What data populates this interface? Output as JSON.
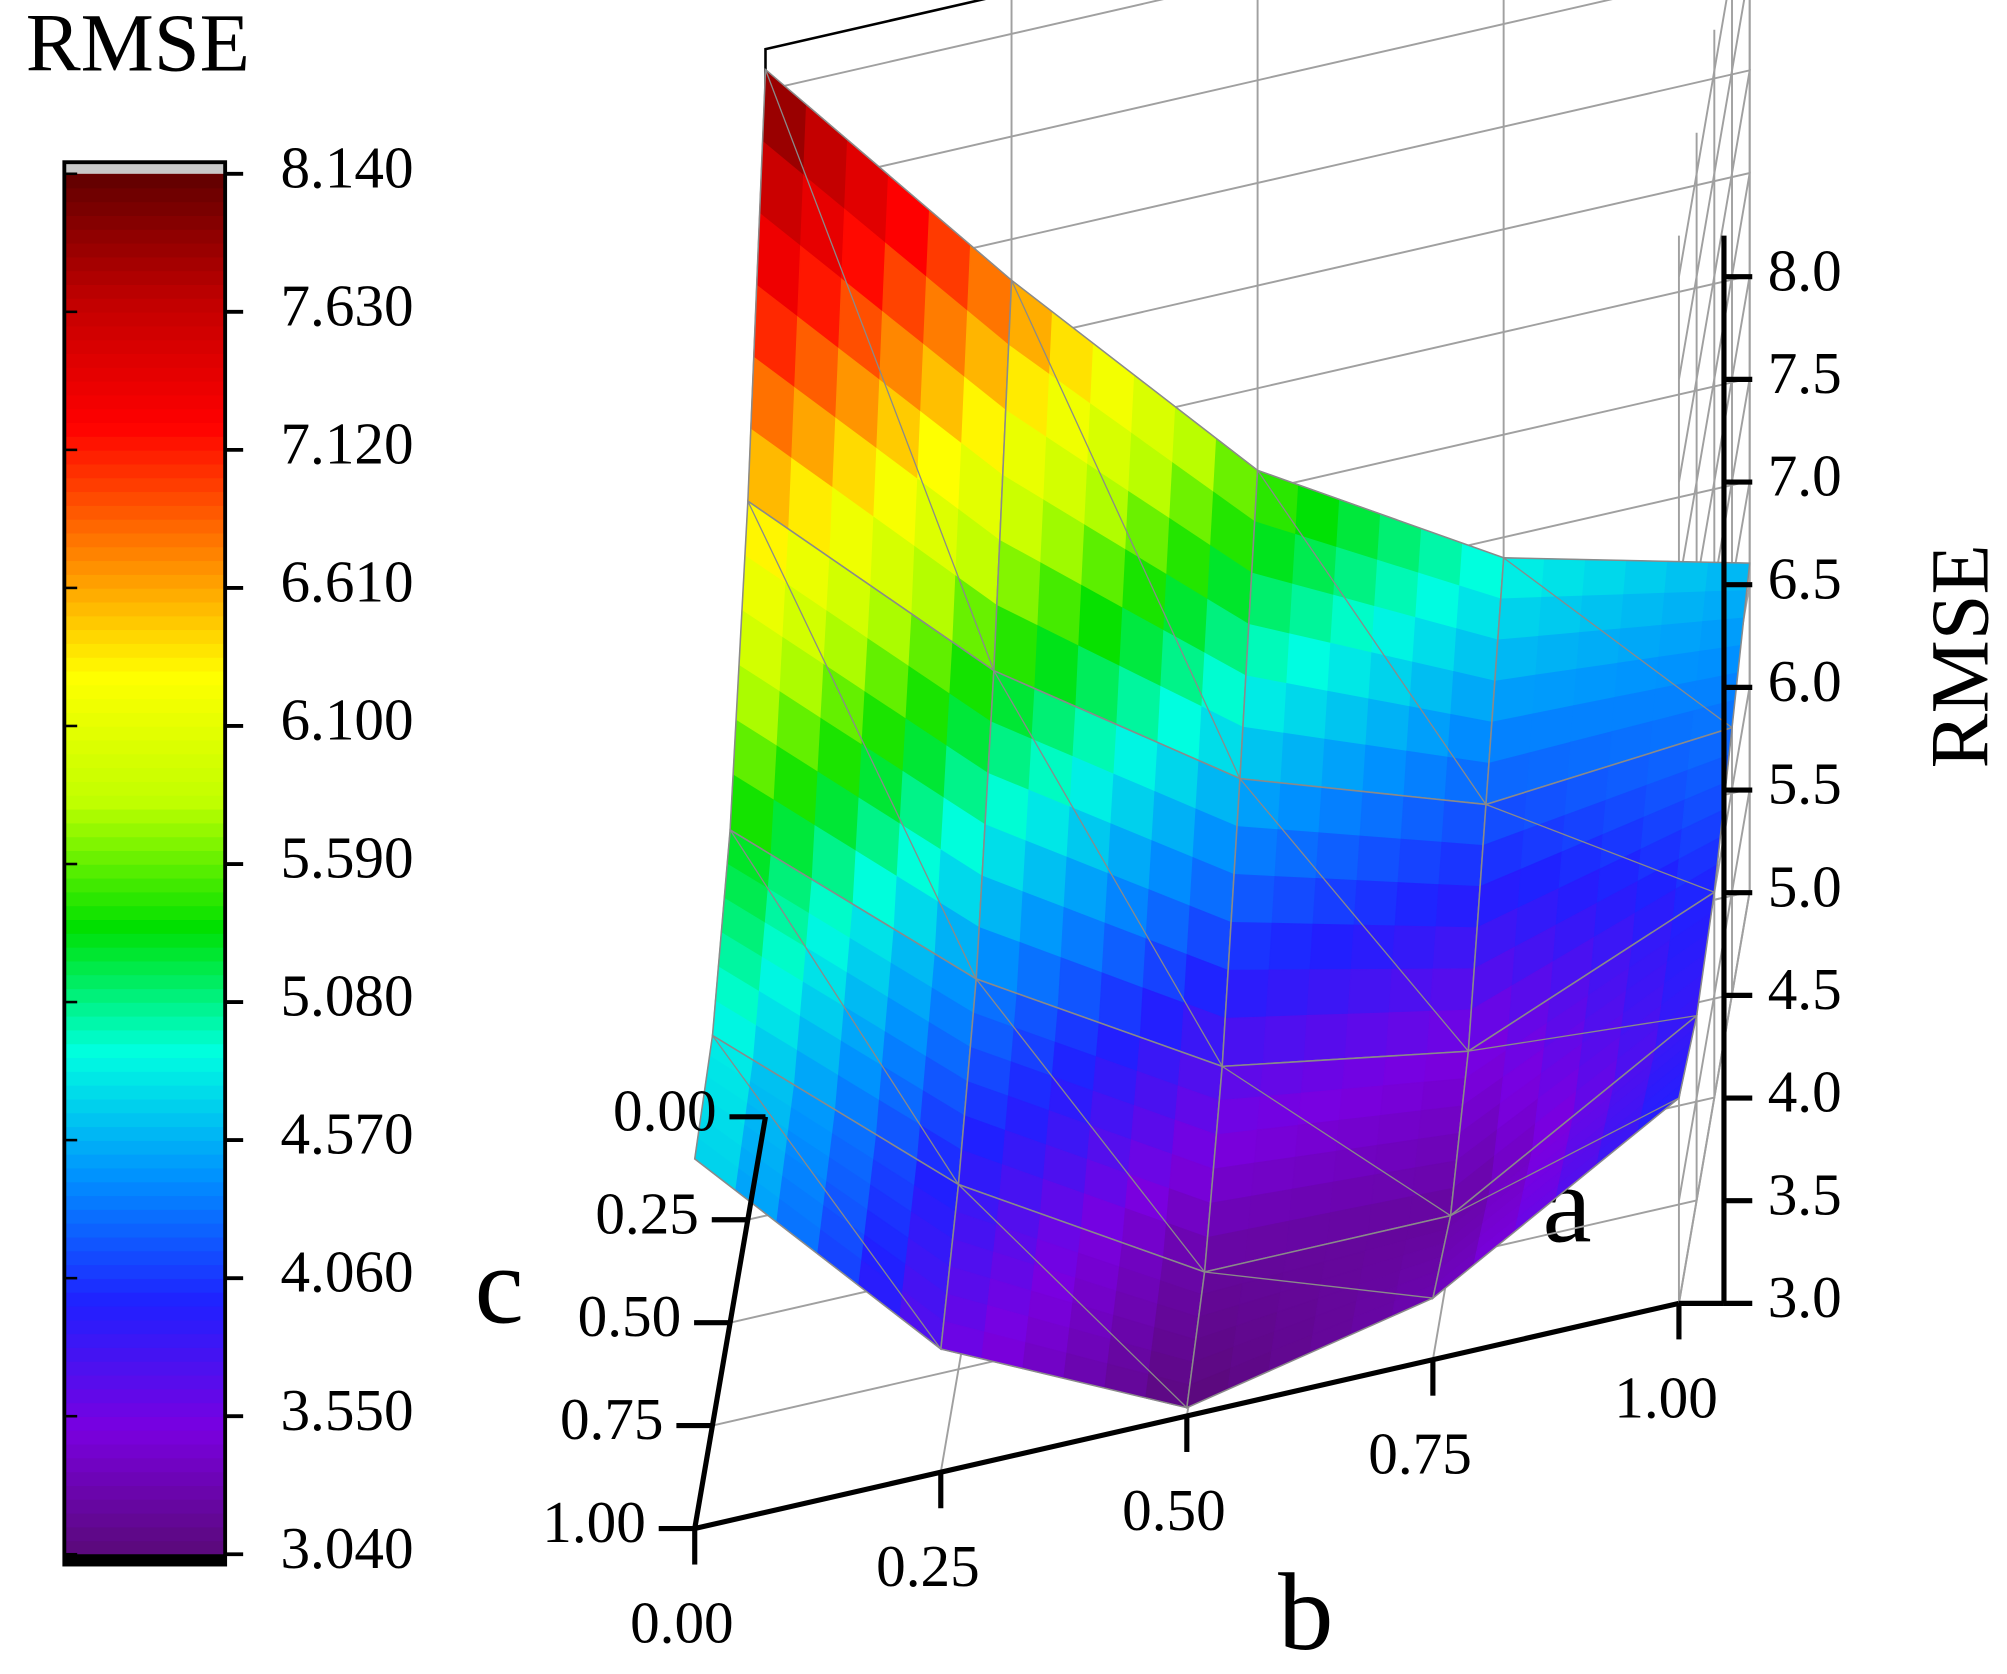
{
  "chart_data": {
    "type": "surface3d",
    "colorbar_title": "RMSE",
    "colorbar_ticks": [
      {
        "value": 3.04,
        "label": "3.040"
      },
      {
        "value": 3.55,
        "label": "3.550"
      },
      {
        "value": 4.06,
        "label": "4.060"
      },
      {
        "value": 4.57,
        "label": "4.570"
      },
      {
        "value": 5.08,
        "label": "5.080"
      },
      {
        "value": 5.59,
        "label": "5.590"
      },
      {
        "value": 6.1,
        "label": "6.100"
      },
      {
        "value": 6.61,
        "label": "6.610"
      },
      {
        "value": 7.12,
        "label": "7.120"
      },
      {
        "value": 7.63,
        "label": "7.630"
      },
      {
        "value": 8.14,
        "label": "8.140"
      }
    ],
    "colormap": [
      "#5a0a78",
      "#7a00e0",
      "#2020ff",
      "#0090ff",
      "#00ffe0",
      "#00e000",
      "#c0ff00",
      "#ffff00",
      "#ff8000",
      "#ff0000",
      "#c00000",
      "#600000"
    ],
    "x_label": "b",
    "y_label": "c",
    "z_label": "RMSE",
    "annotation": "a",
    "x": [
      0,
      0.25,
      0.5,
      0.75,
      1
    ],
    "y": [
      0,
      0.25,
      0.5,
      0.75,
      1
    ],
    "z": [
      [
        8.1,
        6.8,
        5.6,
        4.9,
        4.6
      ],
      [
        6.5,
        5.4,
        4.6,
        4.2,
        4.3
      ],
      [
        5.4,
        4.4,
        3.7,
        3.5,
        4.0
      ],
      [
        4.9,
        3.9,
        3.2,
        3.2,
        3.9
      ],
      [
        4.8,
        3.6,
        3.04,
        3.3,
        4.0
      ]
    ],
    "xlim": [
      0,
      1
    ],
    "ylim": [
      0,
      1
    ],
    "zlim": [
      3,
      8.2
    ],
    "xticks": [
      {
        "value": 0,
        "label": "0.00"
      },
      {
        "value": 0.25,
        "label": "0.25"
      },
      {
        "value": 0.5,
        "label": "0.50"
      },
      {
        "value": 0.75,
        "label": "0.75"
      },
      {
        "value": 1,
        "label": "1.00"
      }
    ],
    "yticks": [
      {
        "value": 0,
        "label": "0.00"
      },
      {
        "value": 0.25,
        "label": "0.25"
      },
      {
        "value": 0.5,
        "label": "0.50"
      },
      {
        "value": 0.75,
        "label": "0.75"
      },
      {
        "value": 1,
        "label": "1.00"
      }
    ],
    "zticks": [
      {
        "value": 3,
        "label": "3.0"
      },
      {
        "value": 3.5,
        "label": "3.5"
      },
      {
        "value": 4,
        "label": "4.0"
      },
      {
        "value": 4.5,
        "label": "4.5"
      },
      {
        "value": 5,
        "label": "5.0"
      },
      {
        "value": 5.5,
        "label": "5.5"
      },
      {
        "value": 6,
        "label": "6.0"
      },
      {
        "value": 6.5,
        "label": "6.5"
      },
      {
        "value": 7,
        "label": "7.0"
      },
      {
        "value": 7.5,
        "label": "7.5"
      },
      {
        "value": 8,
        "label": "8.0"
      }
    ],
    "grid": true
  }
}
